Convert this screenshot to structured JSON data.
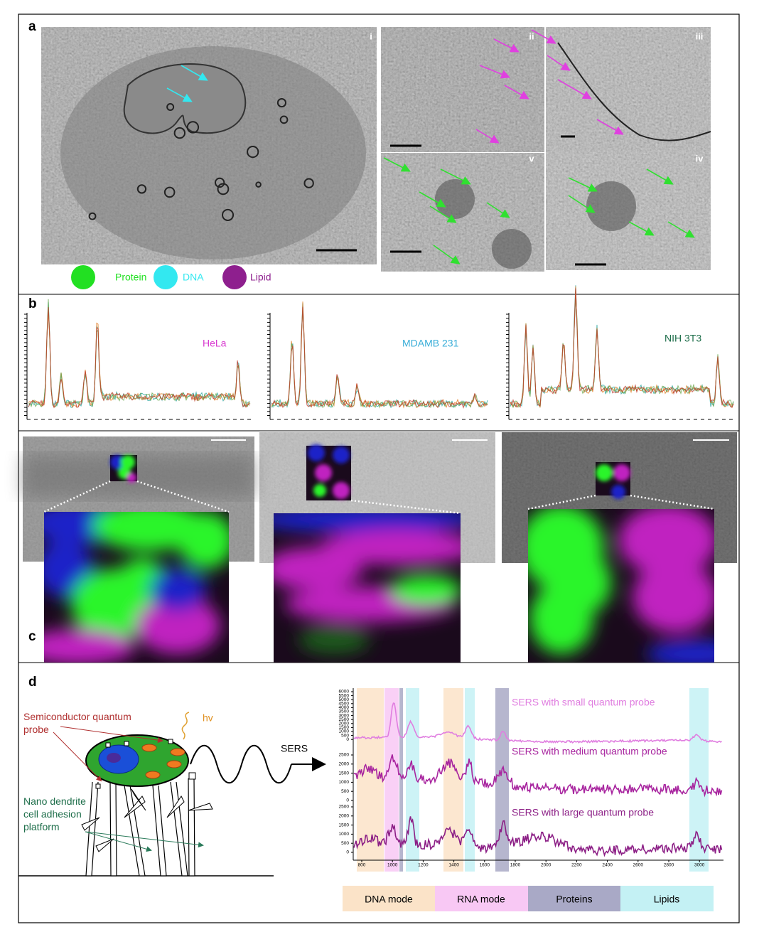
{
  "panel_a": {
    "label": "a",
    "subpanels": [
      "i",
      "ii",
      "iii",
      "iv",
      "v"
    ],
    "legend": [
      {
        "name": "Protein",
        "color": "#22e022"
      },
      {
        "name": "DNA",
        "color": "#33e8f0"
      },
      {
        "name": "Lipid",
        "color": "#8e1f8e"
      }
    ]
  },
  "panel_b": {
    "label": "b",
    "cells": [
      {
        "name": "HeLa",
        "color": "#d83ad0"
      },
      {
        "name": "MDAMB 231",
        "color": "#3aaed8"
      },
      {
        "name": "NIH 3T3",
        "color": "#1e6e4a"
      }
    ]
  },
  "panel_c": {
    "label": "c"
  },
  "panel_d": {
    "label": "d",
    "probe": "Semiconductor quantum probe",
    "light": "hv",
    "platform": "Nano dendrite cell adhesion platform",
    "signal": "SERS",
    "spectra": [
      {
        "name": "SERS with small quantum probe",
        "color": "#e07ee0"
      },
      {
        "name": "SERS with medium quantum probe",
        "color": "#a8259f"
      },
      {
        "name": "SERS with large quantum probe",
        "color": "#8c1f86"
      }
    ],
    "yticks_top": [
      6000,
      5500,
      5000,
      4500,
      4000,
      3500,
      3000,
      2500,
      2000,
      1500,
      1000,
      500,
      0
    ],
    "yticks_middle": [
      2500,
      2000,
      1500,
      1000,
      500,
      0
    ],
    "yticks_bottom": [
      2500,
      2000,
      1500,
      1000,
      500,
      0
    ],
    "xticks": [
      800,
      1000,
      1200,
      1400,
      1600,
      1800,
      2000,
      2200,
      2400,
      2600,
      2800,
      3000
    ],
    "bands": [
      {
        "name": "DNA mode",
        "color": "#fbe3c8"
      },
      {
        "name": "RNA mode",
        "color": "#f8c8f4"
      },
      {
        "name": "Proteins",
        "color": "#a9a9c6"
      },
      {
        "name": "Lipids",
        "color": "#c4f1f4"
      }
    ]
  }
}
